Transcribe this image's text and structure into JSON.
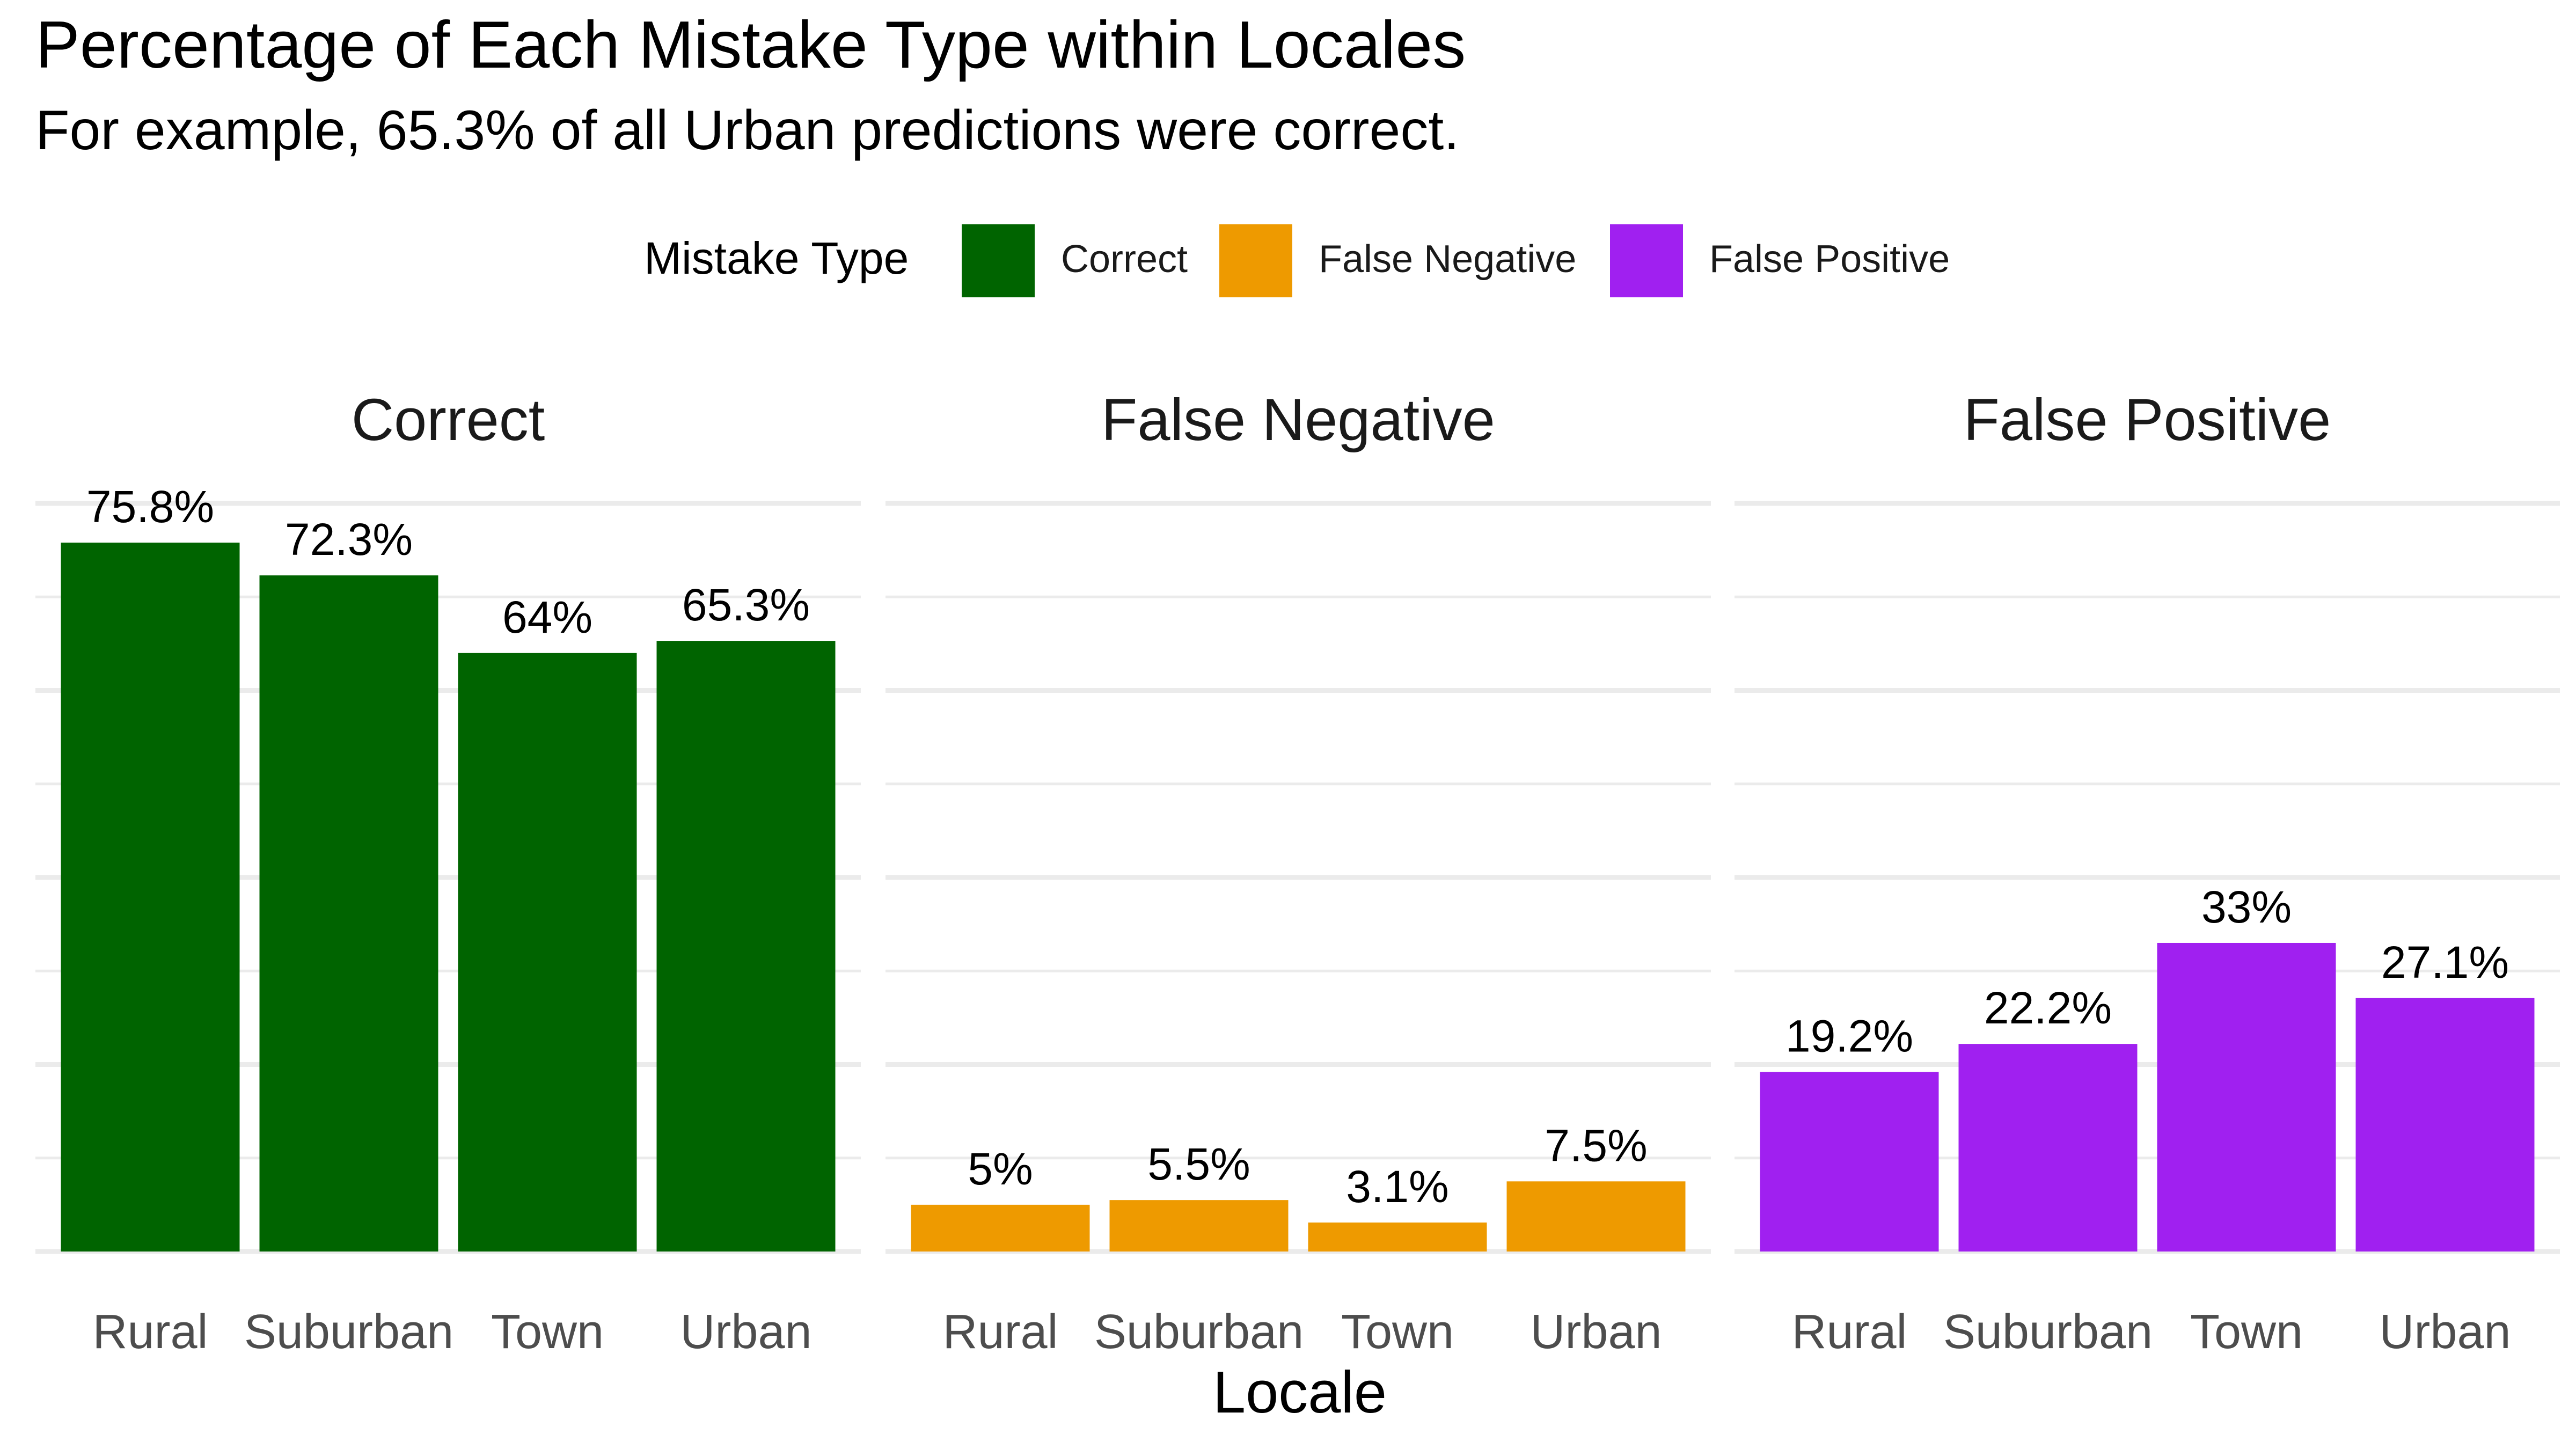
{
  "chart_data": {
    "type": "bar",
    "title": "Percentage of Each Mistake Type within Locales",
    "subtitle": "For example, 65.3% of all Urban predictions were correct.",
    "xlabel": "Locale",
    "ylabel": "",
    "ylim": [
      0,
      80
    ],
    "grid": true,
    "legend": {
      "title": "Mistake Type",
      "position": "top",
      "entries": [
        "Correct",
        "False Negative",
        "False Positive"
      ]
    },
    "categories": [
      "Rural",
      "Suburban",
      "Town",
      "Urban"
    ],
    "series": [
      {
        "name": "Correct",
        "color": "#006400",
        "values": [
          75.8,
          72.3,
          64,
          65.3
        ],
        "labels": [
          "75.8%",
          "72.3%",
          "64%",
          "65.3%"
        ]
      },
      {
        "name": "False Negative",
        "color": "#EE9A00",
        "values": [
          5,
          5.5,
          3.1,
          7.5
        ],
        "labels": [
          "5%",
          "5.5%",
          "3.1%",
          "7.5%"
        ]
      },
      {
        "name": "False Positive",
        "color": "#A020F0",
        "values": [
          19.2,
          22.2,
          33,
          27.1
        ],
        "labels": [
          "19.2%",
          "22.2%",
          "33%",
          "27.1%"
        ]
      }
    ]
  }
}
